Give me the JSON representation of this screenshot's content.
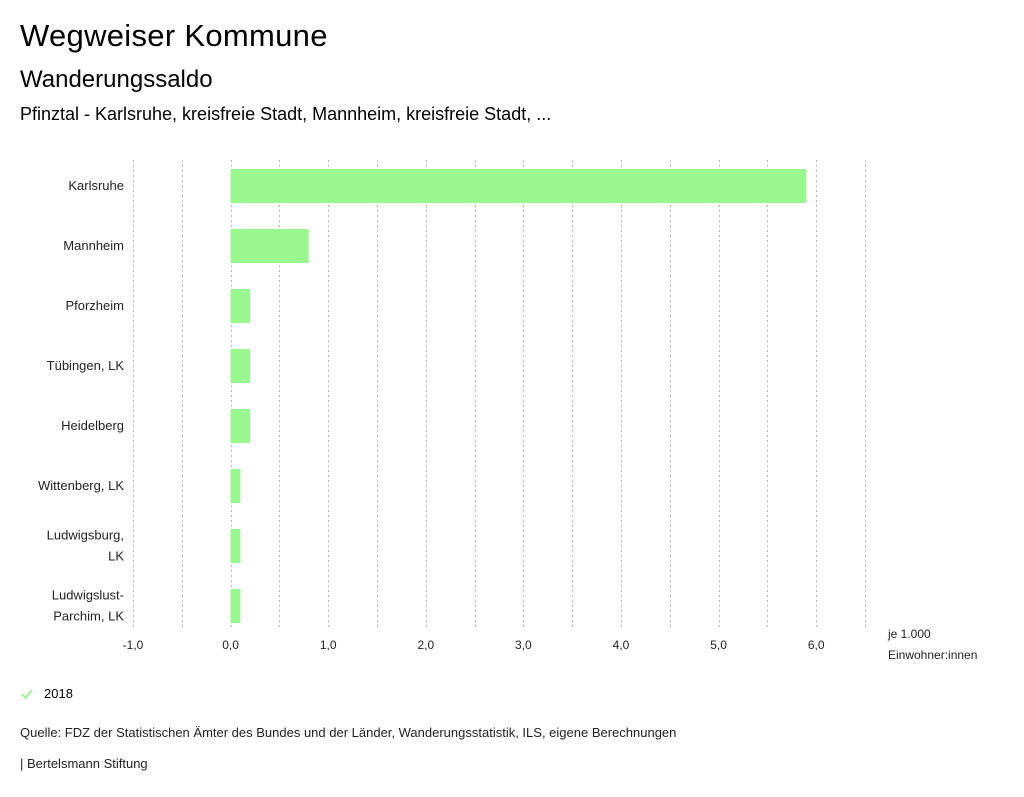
{
  "header": {
    "title": "Wegweiser Kommune",
    "subtitle": "Wanderungssaldo",
    "region": "Pfinztal - Karlsruhe, kreisfreie Stadt, Mannheim, kreisfreie Stadt, ..."
  },
  "colors": {
    "bar": "#98f88f",
    "grid": "#b4b4b4",
    "check": "#98f88f"
  },
  "legend": {
    "label": "2018",
    "icon": "check-icon"
  },
  "footer": {
    "source": "Quelle: FDZ der Statistischen Ämter des Bundes und der Länder, Wanderungsstatistik, ILS, eigene Berechnungen",
    "brand": "| Bertelsmann Stiftung"
  },
  "chart_data": {
    "type": "bar",
    "orientation": "horizontal",
    "categories": [
      [
        "Karlsruhe"
      ],
      [
        "Mannheim"
      ],
      [
        "Pforzheim"
      ],
      [
        "Tübingen, LK"
      ],
      [
        "Heidelberg"
      ],
      [
        "Wittenberg, LK"
      ],
      [
        "Ludwigsburg,",
        "LK"
      ],
      [
        "Ludwigslust-",
        "Parchim, LK"
      ]
    ],
    "series": [
      {
        "name": "2018",
        "values": [
          5.9,
          0.8,
          0.2,
          0.2,
          0.2,
          0.1,
          0.1,
          0.1
        ]
      }
    ],
    "xlim": [
      -1.0,
      6.5
    ],
    "xticks": [
      -1.0,
      0.0,
      1.0,
      2.0,
      3.0,
      4.0,
      5.0,
      6.0
    ],
    "xtick_labels": [
      "-1,0",
      "0,0",
      "1,0",
      "2,0",
      "3,0",
      "4,0",
      "5,0",
      "6,0"
    ],
    "minor_step": 0.5,
    "xlabel": [
      "je 1.000",
      "Einwohner:innen"
    ],
    "grid": true,
    "legend_position": "bottom-left"
  }
}
